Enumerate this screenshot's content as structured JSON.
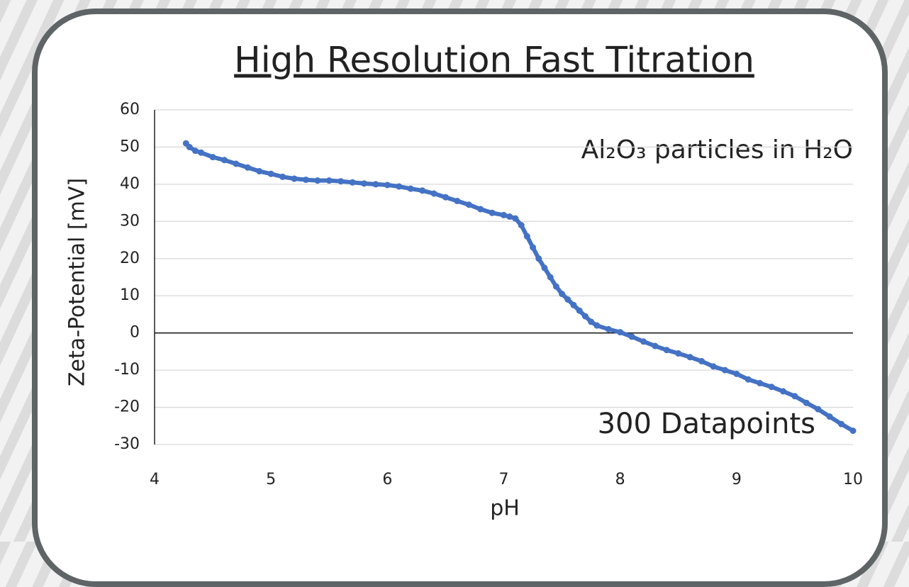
{
  "chart_data": {
    "type": "scatter",
    "title": "High Resolution Fast Titration",
    "xlabel": "pH",
    "ylabel": "Zeta-Potential  [mV]",
    "annotations": [
      "Al₂O₃ particles in H₂O",
      "300 Datapoints"
    ],
    "xlim": [
      4,
      10
    ],
    "xticks": [
      4,
      5,
      6,
      7,
      8,
      9,
      10
    ],
    "ylim": [
      -30,
      60
    ],
    "yticks": [
      -30,
      -20,
      -10,
      0,
      10,
      20,
      30,
      40,
      50,
      60
    ],
    "grid": true,
    "series": [
      {
        "name": "Zeta-Potential",
        "color": "#4472c4",
        "x": [
          4.27,
          4.3,
          4.35,
          4.4,
          4.5,
          4.6,
          4.7,
          4.8,
          4.9,
          5.0,
          5.1,
          5.2,
          5.3,
          5.4,
          5.5,
          5.6,
          5.7,
          5.8,
          5.9,
          6.0,
          6.1,
          6.2,
          6.3,
          6.4,
          6.5,
          6.6,
          6.7,
          6.8,
          6.9,
          7.0,
          7.05,
          7.1,
          7.15,
          7.2,
          7.25,
          7.3,
          7.35,
          7.4,
          7.45,
          7.5,
          7.55,
          7.6,
          7.65,
          7.7,
          7.75,
          7.8,
          7.9,
          8.0,
          8.1,
          8.2,
          8.3,
          8.4,
          8.5,
          8.6,
          8.7,
          8.8,
          8.9,
          9.0,
          9.1,
          9.2,
          9.3,
          9.4,
          9.5,
          9.6,
          9.7,
          9.8,
          9.9,
          10.0
        ],
        "values": [
          51,
          50,
          49,
          48.5,
          47.3,
          46.5,
          45.5,
          44.5,
          43.5,
          42.8,
          42,
          41.5,
          41.2,
          41,
          41,
          40.8,
          40.5,
          40.2,
          40,
          39.8,
          39.4,
          38.8,
          38.3,
          37.5,
          36.5,
          35.5,
          34.5,
          33.3,
          32.3,
          31.7,
          31.3,
          30.8,
          29,
          26,
          23,
          20,
          17.5,
          15,
          12.5,
          10.5,
          9,
          7.5,
          6,
          4.5,
          3,
          2,
          1,
          0.2,
          -1,
          -2.3,
          -3.5,
          -4.6,
          -5.5,
          -6.5,
          -7.6,
          -9,
          -10,
          -11,
          -12.5,
          -13.5,
          -14.5,
          -15.7,
          -17,
          -18.8,
          -20.5,
          -22.5,
          -24.5,
          -26.3
        ]
      }
    ]
  }
}
